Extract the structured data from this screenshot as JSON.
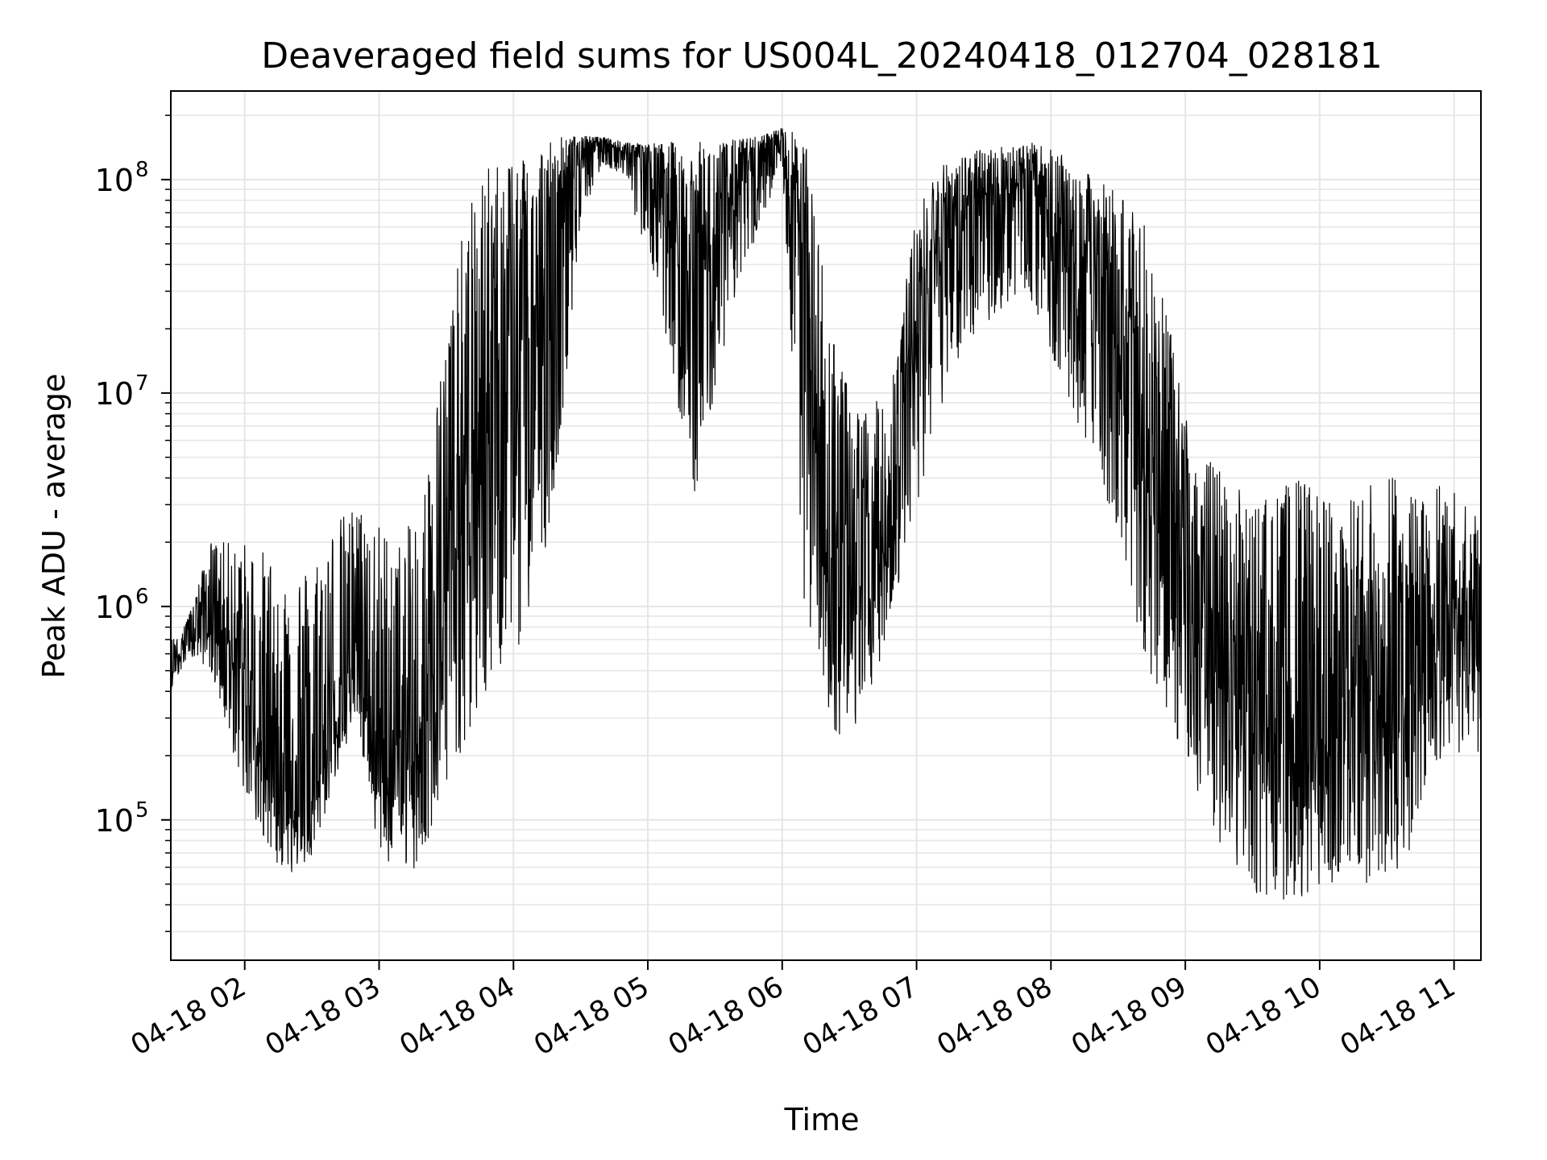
{
  "chart_data": {
    "type": "line",
    "title": "Deaveraged field sums for US004L_20240418_012704_028181",
    "xlabel": "Time",
    "ylabel": "Peak ADU - average",
    "yscale": "log",
    "ylim": [
      22000,
      260000000
    ],
    "xlim": [
      "2024-04-18 01:27",
      "2024-04-18 11:12"
    ],
    "grid": true,
    "line_color": "#000000",
    "grid_color": "#e6e6e6",
    "x_ticks": [
      {
        "value": "2024-04-18 02:00",
        "label": "04-18 02"
      },
      {
        "value": "2024-04-18 03:00",
        "label": "04-18 03"
      },
      {
        "value": "2024-04-18 04:00",
        "label": "04-18 04"
      },
      {
        "value": "2024-04-18 05:00",
        "label": "04-18 05"
      },
      {
        "value": "2024-04-18 06:00",
        "label": "04-18 06"
      },
      {
        "value": "2024-04-18 07:00",
        "label": "04-18 07"
      },
      {
        "value": "2024-04-18 08:00",
        "label": "04-18 08"
      },
      {
        "value": "2024-04-18 09:00",
        "label": "04-18 09"
      },
      {
        "value": "2024-04-18 10:00",
        "label": "04-18 10"
      },
      {
        "value": "2024-04-18 11:00",
        "label": "04-18 11"
      }
    ],
    "y_ticks": [
      {
        "value": 100000,
        "base": "10",
        "exp": "5"
      },
      {
        "value": 1000000,
        "base": "10",
        "exp": "6"
      },
      {
        "value": 10000000,
        "base": "10",
        "exp": "7"
      },
      {
        "value": 100000000,
        "base": "10",
        "exp": "8"
      }
    ],
    "series": [
      {
        "x": [
          "2024-04-18 01:27",
          "2024-04-18 01:35",
          "2024-04-18 01:45",
          "2024-04-18 02:00",
          "2024-04-18 02:10",
          "2024-04-18 02:20",
          "2024-04-18 02:30",
          "2024-04-18 02:40",
          "2024-04-18 02:50",
          "2024-04-18 03:00",
          "2024-04-18 03:10",
          "2024-04-18 03:20",
          "2024-04-18 03:30",
          "2024-04-18 03:40",
          "2024-04-18 03:50",
          "2024-04-18 04:00",
          "2024-04-18 04:10",
          "2024-04-18 04:20",
          "2024-04-18 04:30",
          "2024-04-18 04:40",
          "2024-04-18 04:50",
          "2024-04-18 05:00",
          "2024-04-18 05:10",
          "2024-04-18 05:20",
          "2024-04-18 05:30",
          "2024-04-18 05:40",
          "2024-04-18 05:50",
          "2024-04-18 06:00",
          "2024-04-18 06:10",
          "2024-04-18 06:20",
          "2024-04-18 06:30",
          "2024-04-18 06:40",
          "2024-04-18 06:50",
          "2024-04-18 07:00",
          "2024-04-18 07:10",
          "2024-04-18 07:20",
          "2024-04-18 07:30",
          "2024-04-18 07:40",
          "2024-04-18 07:50",
          "2024-04-18 08:00",
          "2024-04-18 08:10",
          "2024-04-18 08:20",
          "2024-04-18 08:30",
          "2024-04-18 08:40",
          "2024-04-18 08:50",
          "2024-04-18 09:00",
          "2024-04-18 09:10",
          "2024-04-18 09:20",
          "2024-04-18 09:30",
          "2024-04-18 09:40",
          "2024-04-18 09:50",
          "2024-04-18 10:00",
          "2024-04-18 10:10",
          "2024-04-18 10:20",
          "2024-04-18 10:30",
          "2024-04-18 10:40",
          "2024-04-18 10:50",
          "2024-04-18 11:00",
          "2024-04-18 11:12"
        ],
        "center": [
          500000,
          800000,
          1100000,
          400000,
          200000,
          150000,
          130000,
          300000,
          700000,
          150000,
          180000,
          350000,
          1500000,
          3000000,
          8000000,
          12000000,
          15000000,
          70000000,
          140000000,
          150000000,
          140000000,
          120000000,
          80000000,
          40000000,
          60000000,
          90000000,
          130000000,
          160000000,
          40000000,
          1500000,
          900000,
          1500000,
          3000000,
          20000000,
          50000000,
          70000000,
          80000000,
          90000000,
          100000000,
          70000000,
          50000000,
          40000000,
          25000000,
          10000000,
          2000000,
          1000000,
          600000,
          500000,
          300000,
          250000,
          230000,
          250000,
          280000,
          230000,
          300000,
          600000,
          800000,
          900000,
          700000
        ],
        "high": [
          700000,
          900000,
          2000000,
          2000000,
          1800000,
          1500000,
          1600000,
          2500000,
          3000000,
          2500000,
          2000000,
          3500000,
          20000000,
          80000000,
          120000000,
          140000000,
          150000000,
          160000000,
          160000000,
          158000000,
          150000000,
          148000000,
          150000000,
          150000000,
          150000000,
          155000000,
          160000000,
          175000000,
          160000000,
          30000000,
          10000000,
          8000000,
          15000000,
          70000000,
          120000000,
          130000000,
          140000000,
          145000000,
          150000000,
          140000000,
          120000000,
          100000000,
          90000000,
          70000000,
          30000000,
          8000000,
          5000000,
          4000000,
          3000000,
          3500000,
          4000000,
          3500000,
          3000000,
          3500000,
          4500000,
          4000000,
          4000000,
          3500000,
          2500000
        ],
        "low": [
          400000,
          600000,
          500000,
          130000,
          70000,
          55000,
          65000,
          150000,
          300000,
          65000,
          60000,
          55000,
          120000,
          250000,
          400000,
          600000,
          900000,
          5000000,
          60000000,
          120000000,
          100000000,
          40000000,
          15000000,
          3000000,
          10000000,
          30000000,
          60000000,
          120000000,
          1000000,
          300000,
          200000,
          400000,
          1000000,
          3000000,
          8000000,
          15000000,
          20000000,
          25000000,
          30000000,
          15000000,
          8000000,
          5000000,
          2000000,
          700000,
          300000,
          200000,
          100000,
          60000,
          45000,
          40000,
          42000,
          45000,
          50000,
          45000,
          50000,
          70000,
          150000,
          200000,
          200000
        ]
      }
    ]
  }
}
